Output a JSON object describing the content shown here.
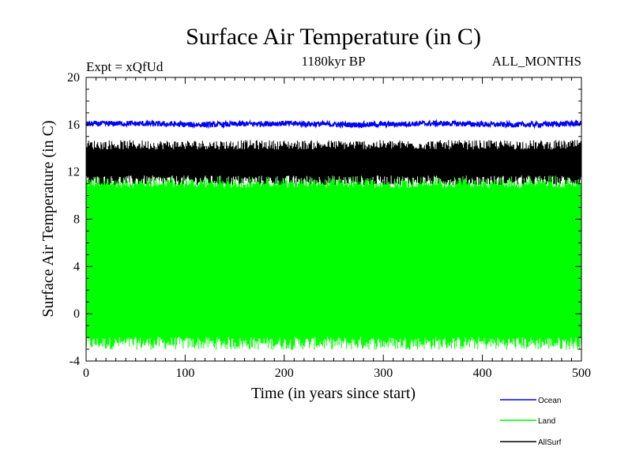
{
  "chart_data": {
    "type": "line",
    "title": "Surface Air Temperature (in C)",
    "subtitle_left": "Expt = xQfUd",
    "subtitle_center": "1180kyr BP",
    "subtitle_right": "ALL_MONTHS",
    "xlabel": "Time (in years since start)",
    "ylabel": "Surface Air Temperature (in C)",
    "xlim": [
      0,
      500
    ],
    "ylim": [
      -4,
      20
    ],
    "xticks": [
      0,
      100,
      200,
      300,
      400,
      500
    ],
    "xtick_labels": [
      "0",
      "100",
      "200",
      "300",
      "400",
      "500"
    ],
    "yticks": [
      -4,
      0,
      4,
      8,
      12,
      16,
      20
    ],
    "ytick_labels": [
      "-4",
      "0",
      "4",
      "8",
      "12",
      "16",
      "20"
    ],
    "grid": false,
    "legend_position": "bottom-right",
    "series": [
      {
        "name": "Land",
        "color": "#00ff00",
        "min_approx": -2.5,
        "max_approx": 11.2,
        "mean_approx": 4.3
      },
      {
        "name": "AllSurf",
        "color": "#000000",
        "min_approx": 11.3,
        "max_approx": 14.3,
        "mean_approx": 12.8
      },
      {
        "name": "Ocean",
        "color": "#0000ff",
        "min_approx": 15.8,
        "max_approx": 16.3,
        "mean_approx": 16.05
      }
    ],
    "legend": [
      "Ocean",
      "Land",
      "AllSurf"
    ]
  }
}
